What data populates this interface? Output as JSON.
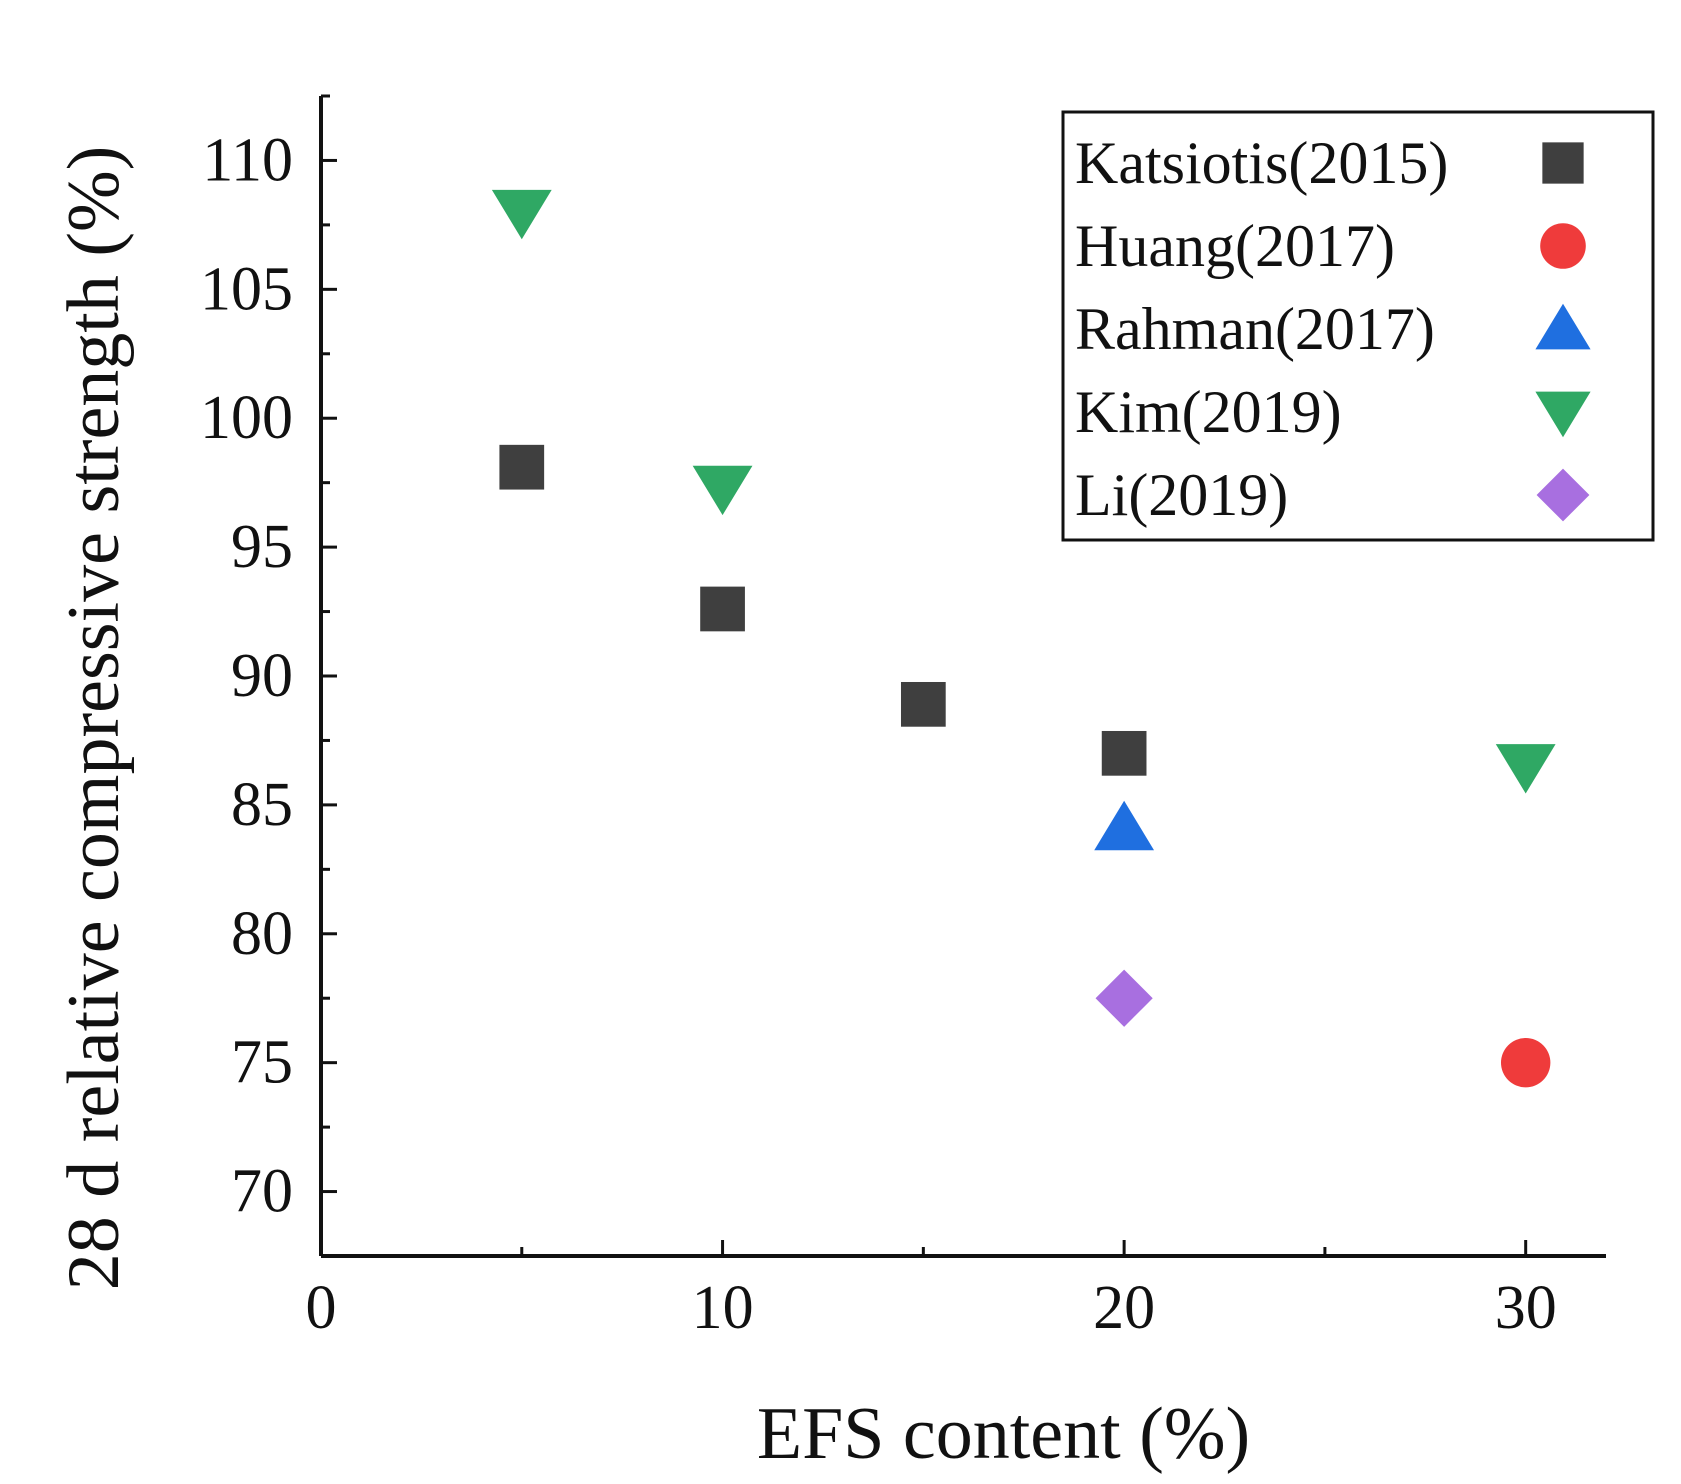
{
  "chart_data": {
    "type": "scatter",
    "xlabel": "EFS content (%)",
    "ylabel": "28 d relative compressive strength (%)",
    "xlim": [
      0,
      32
    ],
    "ylim": [
      67.5,
      112.5
    ],
    "xticks": [
      0,
      10,
      20,
      30
    ],
    "xticks_minor": [
      5,
      15,
      25
    ],
    "yticks": [
      70,
      75,
      80,
      85,
      90,
      95,
      100,
      105,
      110
    ],
    "legend_position": "top-right",
    "series": [
      {
        "name": "Katsiotis(2015)",
        "marker": "square",
        "color": "#3f3f3f",
        "points": [
          {
            "x": 5,
            "y": 98.1
          },
          {
            "x": 10,
            "y": 92.6
          },
          {
            "x": 15,
            "y": 88.9
          },
          {
            "x": 20,
            "y": 87.0
          }
        ]
      },
      {
        "name": "Huang(2017)",
        "marker": "circle",
        "color": "#ef3b3b",
        "points": [
          {
            "x": 30,
            "y": 75.0
          }
        ]
      },
      {
        "name": "Rahman(2017)",
        "marker": "triangle-up",
        "color": "#1f6fe0",
        "points": [
          {
            "x": 20,
            "y": 84.1
          }
        ]
      },
      {
        "name": "Kim(2019)",
        "marker": "triangle-down",
        "color": "#2fa864",
        "points": [
          {
            "x": 5,
            "y": 108.0
          },
          {
            "x": 10,
            "y": 97.3
          },
          {
            "x": 30,
            "y": 86.5
          }
        ]
      },
      {
        "name": "Li(2019)",
        "marker": "diamond",
        "color": "#a86fe0",
        "points": [
          {
            "x": 20,
            "y": 77.5
          }
        ]
      }
    ]
  }
}
